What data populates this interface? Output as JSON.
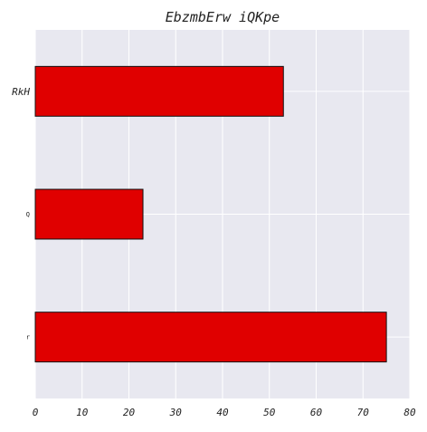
{
  "chart_data": {
    "type": "bar",
    "orientation": "horizontal",
    "title": "EbzmbErw iQKpe",
    "xlabel": "",
    "ylabel": "",
    "categories": [
      "RkH",
      "Q",
      "r"
    ],
    "values": [
      53,
      23,
      75
    ],
    "xlim": [
      0,
      80
    ],
    "xticks": [
      0,
      10,
      20,
      30,
      40,
      50,
      60,
      70,
      80
    ],
    "grid": true,
    "colors": {
      "bar_fill": "#e00000",
      "bar_edge": "#111111",
      "plot_background": "#e8e8f0",
      "grid": "#ffffff"
    }
  }
}
